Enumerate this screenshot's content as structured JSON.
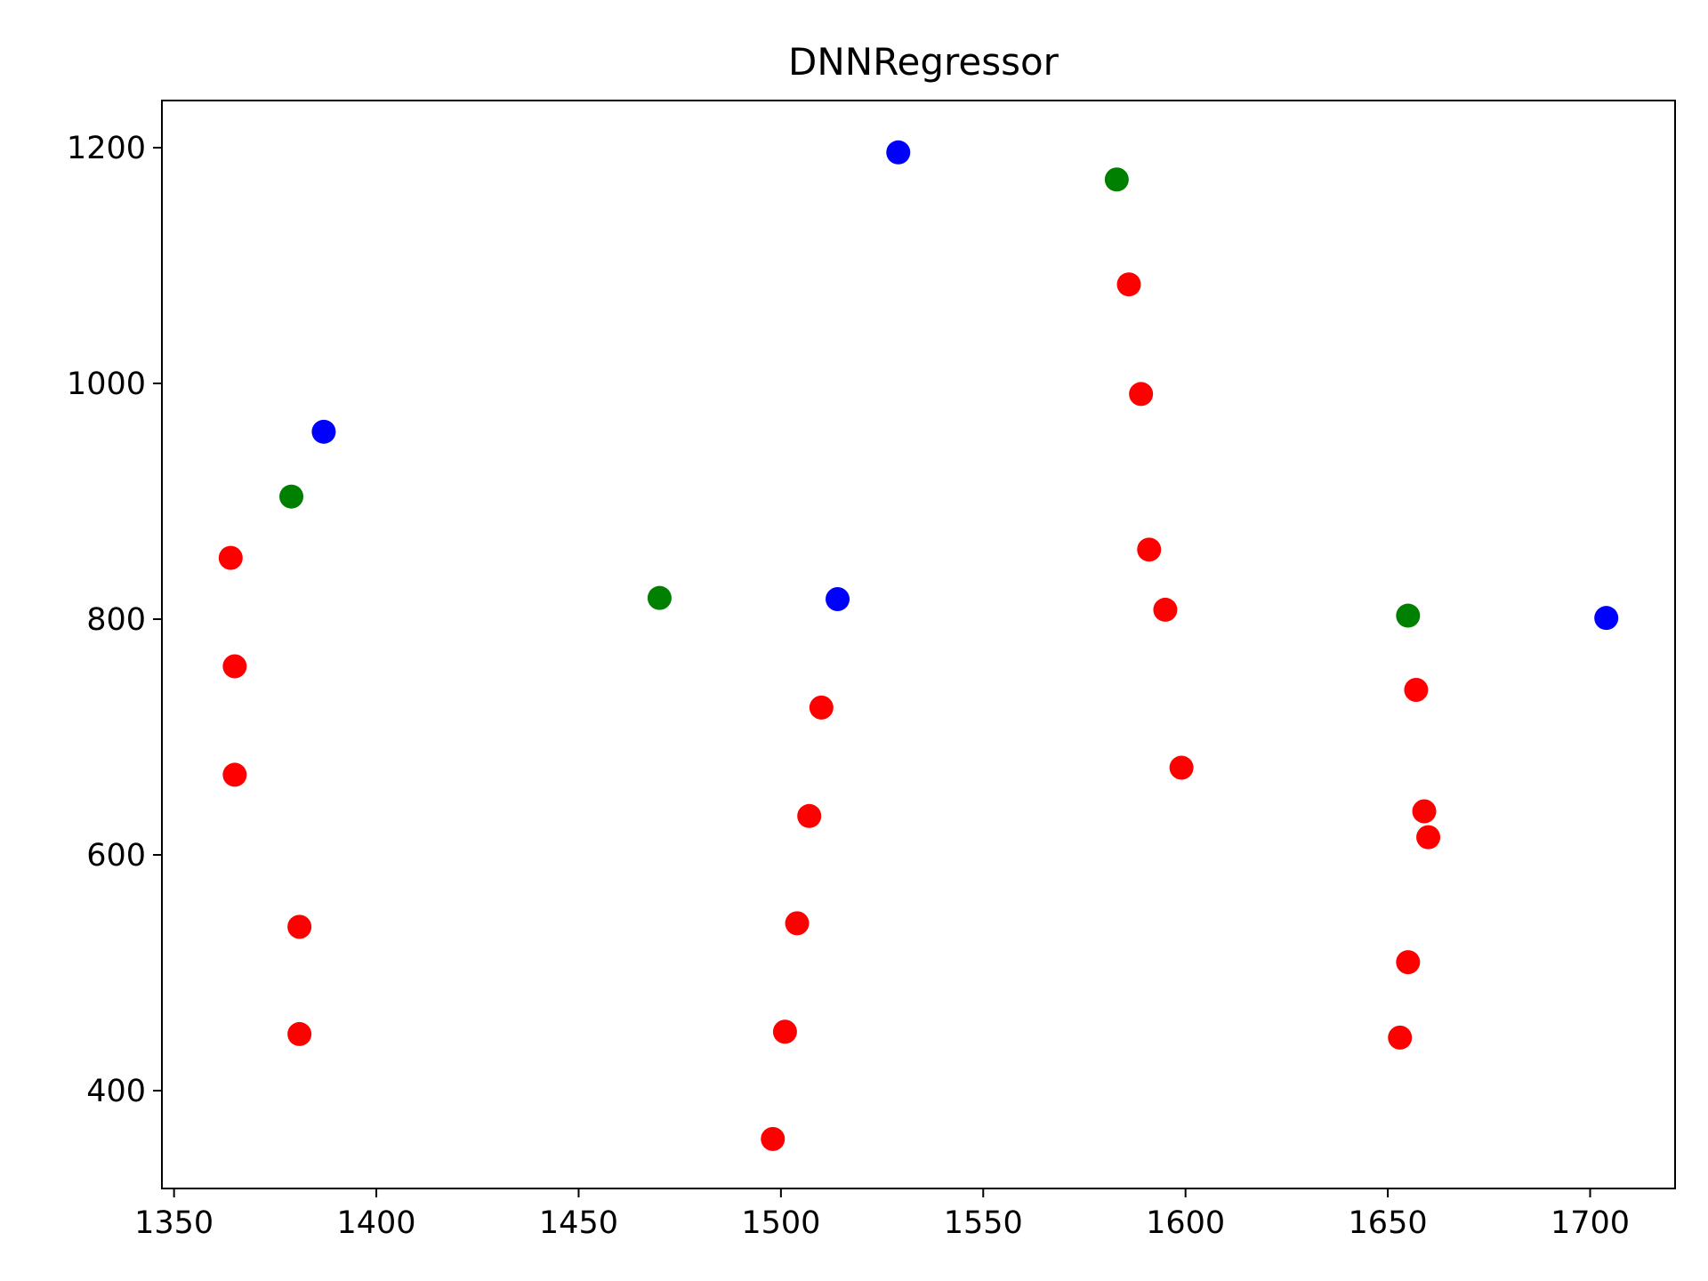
{
  "chart_data": {
    "type": "scatter",
    "title": "DNNRegressor",
    "xlabel": "",
    "ylabel": "",
    "xlim": [
      1347,
      1721
    ],
    "ylim": [
      317,
      1240
    ],
    "xticks": [
      1350,
      1400,
      1450,
      1500,
      1550,
      1600,
      1650,
      1700
    ],
    "yticks": [
      400,
      600,
      800,
      1000,
      1200
    ],
    "grid": false,
    "series": [
      {
        "color": "#ff0000",
        "points": [
          [
            1364,
            852
          ],
          [
            1365,
            760
          ],
          [
            1365,
            668
          ],
          [
            1381,
            539
          ],
          [
            1381,
            448
          ],
          [
            1510,
            725
          ],
          [
            1507,
            633
          ],
          [
            1504,
            542
          ],
          [
            1501,
            450
          ],
          [
            1498,
            359
          ],
          [
            1586,
            1084
          ],
          [
            1589,
            991
          ],
          [
            1591,
            859
          ],
          [
            1595,
            808
          ],
          [
            1599,
            674
          ],
          [
            1657,
            740
          ],
          [
            1659,
            637
          ],
          [
            1660,
            615
          ],
          [
            1655,
            509
          ],
          [
            1653,
            445
          ]
        ]
      },
      {
        "color": "#008000",
        "points": [
          [
            1379,
            904
          ],
          [
            1470,
            818
          ],
          [
            1583,
            1173
          ],
          [
            1655,
            803
          ]
        ]
      },
      {
        "color": "#0000ff",
        "points": [
          [
            1387,
            959
          ],
          [
            1514,
            817
          ],
          [
            1529,
            1196
          ],
          [
            1704,
            801
          ]
        ]
      }
    ]
  }
}
